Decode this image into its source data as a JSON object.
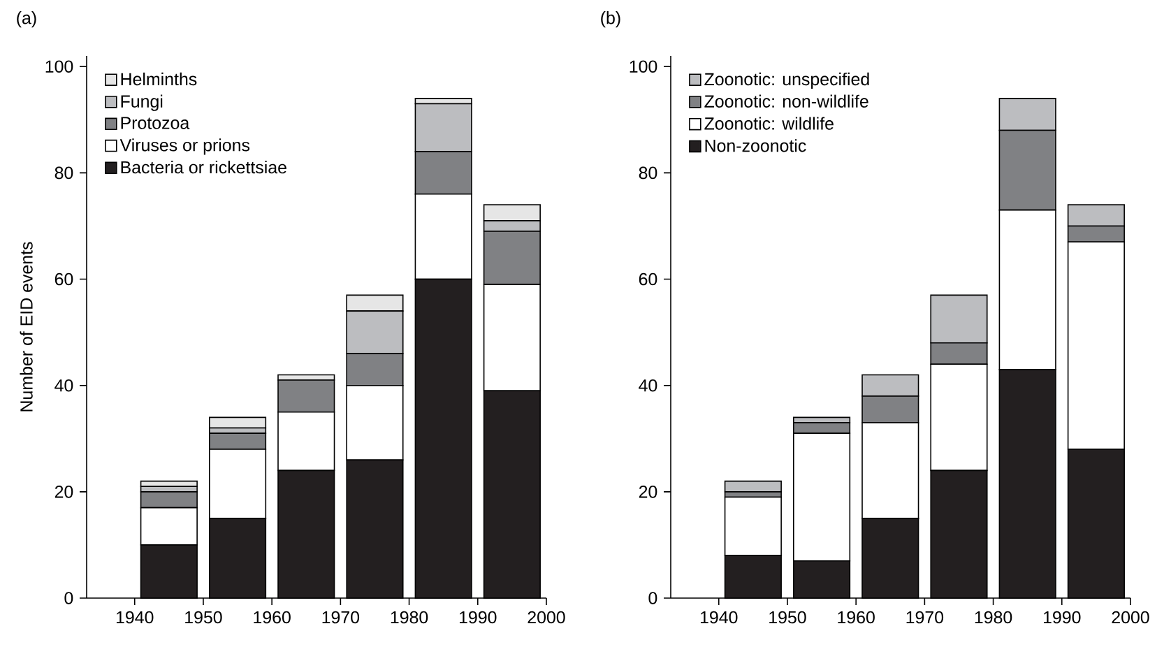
{
  "chart_data": [
    {
      "type": "bar",
      "title": "(a)",
      "ylabel": "Number of EID events",
      "stacked": true,
      "legend": "top left",
      "x": [
        1945,
        1955,
        1965,
        1975,
        1985,
        1995
      ],
      "xlim": [
        1933,
        2000
      ],
      "xticks": [
        1940,
        1950,
        1960,
        1970,
        1980,
        1990,
        2000
      ],
      "ylim": [
        0,
        102
      ],
      "yticks": [
        0,
        20,
        40,
        60,
        80,
        100
      ],
      "series": [
        {
          "name": "Bacteria or rickettsiae",
          "color": "#231f20",
          "values": [
            10,
            15,
            24,
            26,
            60,
            39
          ]
        },
        {
          "name": "Viruses or prions",
          "color": "#ffffff",
          "values": [
            7,
            13,
            11,
            14,
            16,
            20
          ]
        },
        {
          "name": "Protozoa",
          "color": "#808184",
          "values": [
            3,
            3,
            6,
            6,
            8,
            10
          ]
        },
        {
          "name": "Fungi",
          "color": "#bcbdc0",
          "values": [
            1,
            1,
            0,
            8,
            9,
            2
          ]
        },
        {
          "name": "Helminths",
          "color": "#e6e6e6",
          "values": [
            1,
            2,
            1,
            3,
            1,
            3
          ]
        }
      ]
    },
    {
      "type": "bar",
      "title": "(b)",
      "stacked": true,
      "legend": "top left",
      "x": [
        1945,
        1955,
        1965,
        1975,
        1985,
        1995
      ],
      "xlim": [
        1933,
        2000
      ],
      "xticks": [
        1940,
        1950,
        1960,
        1970,
        1980,
        1990,
        2000
      ],
      "ylim": [
        0,
        102
      ],
      "yticks": [
        0,
        20,
        40,
        60,
        80,
        100
      ],
      "series": [
        {
          "name": "Non-zoonotic",
          "color": "#231f20",
          "values": [
            8,
            7,
            15,
            24,
            43,
            28
          ]
        },
        {
          "name": "Zoonotic: wildlife",
          "color": "#ffffff",
          "values": [
            11,
            24,
            18,
            20,
            30,
            39
          ]
        },
        {
          "name": "Zoonotic: non-wildlife",
          "color": "#808184",
          "values": [
            1,
            2,
            5,
            4,
            15,
            3
          ]
        },
        {
          "name": "Zoonotic: unspecified",
          "color": "#bcbdc0",
          "values": [
            2,
            1,
            4,
            9,
            6,
            4
          ]
        }
      ]
    }
  ]
}
